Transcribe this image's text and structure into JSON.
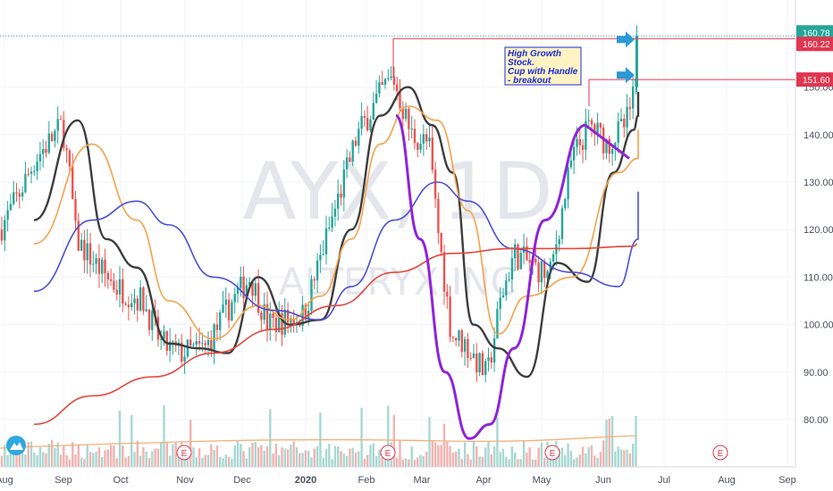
{
  "chart_data": {
    "type": "candlestick",
    "symbol_watermark": "AYX, 1D",
    "company_watermark": "ALTERYX INC",
    "annotation_lines": [
      "High Growth",
      "Stock.",
      "Cup with Handle",
      "- breakout"
    ],
    "ylim": [
      70,
      165
    ],
    "y_ticks": [
      80,
      90,
      100,
      110,
      120,
      130,
      140,
      150
    ],
    "y_tick_labels": [
      "80.00",
      "90.00",
      "100.00",
      "110.00",
      "120.00",
      "130.00",
      "140.00",
      "150.00"
    ],
    "x_tick_labels": [
      "Aug",
      "Sep",
      "Oct",
      "Nov",
      "Dec",
      "2020",
      "Feb",
      "Mar",
      "Apr",
      "May",
      "Jun",
      "Jul",
      "Aug",
      "Sep"
    ],
    "price_labels": [
      {
        "text": "160.78",
        "value": 160.78,
        "color": "#26a69a"
      },
      {
        "text": "160.22",
        "value": 160.22,
        "color": "#e0364f"
      },
      {
        "text": "151.60",
        "value": 151.6,
        "color": "#e0364f"
      }
    ],
    "resistance_levels": [
      160.22,
      151.6
    ],
    "last_close": 160.78,
    "colors": {
      "up": "#26a69a",
      "down": "#ef5350",
      "ma_fast": "#3d3d3d",
      "ma_mid": "#f7a14b",
      "ma_slow": "#4c4fd6",
      "ma_long": "#e4463b",
      "vol_ma": "#f0b27a",
      "pattern": "#8e24d8",
      "resistance": "#e0364f",
      "arrow": "#2b9ad6"
    },
    "earnings_marker": "E",
    "earnings_months": [
      "Nov",
      "Feb",
      "May",
      "Aug"
    ],
    "series": [
      {
        "id": "ma_fast",
        "color": "#3d3d3d",
        "points": [
          [
            "Aug",
            122
          ],
          [
            "Sep",
            143
          ],
          [
            "Sep",
            118
          ],
          [
            "Oct",
            112
          ],
          [
            "Oct",
            96
          ],
          [
            "Nov",
            95
          ],
          [
            "Nov",
            94
          ],
          [
            "Dec",
            110
          ],
          [
            "Dec",
            100
          ],
          [
            "2020",
            101
          ],
          [
            "2020",
            120
          ],
          [
            "Feb",
            144
          ],
          [
            "Feb",
            150
          ],
          [
            "Mar",
            142
          ],
          [
            "Mar",
            132
          ],
          [
            "Mar",
            100
          ],
          [
            "Apr",
            95
          ],
          [
            "Apr",
            89
          ],
          [
            "May",
            113
          ],
          [
            "May",
            109
          ],
          [
            "Jun",
            132
          ],
          [
            "Jun",
            141
          ],
          [
            "Jun",
            144
          ],
          [
            "Jul",
            149
          ]
        ]
      },
      {
        "id": "ma_mid",
        "color": "#f7a14b",
        "points": [
          [
            "Aug",
            117
          ],
          [
            "Sep",
            138
          ],
          [
            "Oct",
            122
          ],
          [
            "Oct",
            105
          ],
          [
            "Nov",
            97
          ],
          [
            "Dec",
            104
          ],
          [
            "Dec",
            101
          ],
          [
            "2020",
            106
          ],
          [
            "2020",
            118
          ],
          [
            "Feb",
            138
          ],
          [
            "Feb",
            146
          ],
          [
            "Mar",
            143
          ],
          [
            "Mar",
            124
          ],
          [
            "Apr",
            98
          ],
          [
            "Apr",
            106
          ],
          [
            "May",
            110
          ],
          [
            "Jun",
            132
          ],
          [
            "Jun",
            135
          ],
          [
            "Jul",
            141
          ]
        ]
      },
      {
        "id": "ma_slow",
        "color": "#4c4fd6",
        "points": [
          [
            "Aug",
            107
          ],
          [
            "Sep",
            122
          ],
          [
            "Oct",
            126
          ],
          [
            "Oct",
            121
          ],
          [
            "Nov",
            110
          ],
          [
            "Dec",
            103
          ],
          [
            "2020",
            101
          ],
          [
            "2020",
            108
          ],
          [
            "Feb",
            122
          ],
          [
            "Mar",
            130
          ],
          [
            "Mar",
            126
          ],
          [
            "Apr",
            116
          ],
          [
            "May",
            111
          ],
          [
            "Jun",
            108
          ],
          [
            "Jun",
            118
          ],
          [
            "Jul",
            128
          ]
        ]
      },
      {
        "id": "ma_long",
        "color": "#e4463b",
        "points": [
          [
            "Aug",
            79
          ],
          [
            "Sep",
            85
          ],
          [
            "Oct",
            89
          ],
          [
            "Nov",
            94
          ],
          [
            "Dec",
            99
          ],
          [
            "2020",
            104
          ],
          [
            "Feb",
            111
          ],
          [
            "Mar",
            115
          ],
          [
            "Apr",
            116
          ],
          [
            "May",
            116
          ],
          [
            "Jun",
            116.5
          ],
          [
            "Jul",
            117
          ]
        ]
      }
    ],
    "cup": [
      [
        "Feb",
        144
      ],
      [
        "Mar",
        124
      ],
      [
        "Mar",
        96
      ],
      [
        "Apr",
        76
      ],
      [
        "Apr",
        80
      ],
      [
        "May",
        104
      ],
      [
        "May",
        124
      ],
      [
        "Jun",
        142
      ]
    ],
    "handle": [
      [
        "Jun",
        142
      ],
      [
        "Jun",
        135
      ]
    ]
  }
}
